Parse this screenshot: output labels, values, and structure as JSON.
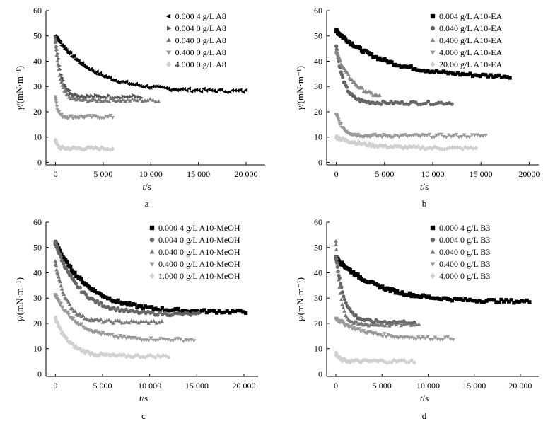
{
  "chart_data": [
    {
      "type": "scatter",
      "panel_label": "a",
      "xlabel_var": "t",
      "xlabel_unit": "/s",
      "ylabel_var": "γ",
      "ylabel_unit": "/(mN·m⁻¹)",
      "xlim": [
        -1000,
        22000
      ],
      "ylim": [
        -1,
        60
      ],
      "xticks": [
        0,
        5000,
        10000,
        15000,
        20000
      ],
      "xtick_labels": [
        "0",
        "5 000",
        "10 000",
        "15 000",
        "20 000"
      ],
      "yticks": [
        0,
        10,
        20,
        30,
        40,
        50,
        60
      ],
      "legend_position": "top-right",
      "series": [
        {
          "name": "0.000 4 g/L A8",
          "marker": "triangle-left",
          "color": "#000000",
          "kind": "decay",
          "start": 50,
          "end": 28,
          "tau": 4000,
          "plateau": 26,
          "tmax": 20000
        },
        {
          "name": "0.004 0 g/L A8",
          "marker": "triangle-right",
          "color": "#555555",
          "kind": "decay",
          "start": 50,
          "end": 26,
          "tau": 600,
          "plateau": 26,
          "tmax": 9000
        },
        {
          "name": "0.040 0 g/L A8",
          "marker": "triangle-up",
          "color": "#777777",
          "kind": "decay",
          "start": 48,
          "end": 24.5,
          "tau": 500,
          "plateau": 24.5,
          "tmax": 10800
        },
        {
          "name": "0.400 0 g/L A8",
          "marker": "triangle-down",
          "color": "#999999",
          "kind": "decay",
          "start": 26,
          "end": 18,
          "tau": 250,
          "plateau": 18,
          "tmax": 6000
        },
        {
          "name": "4.000 0 g/L A8",
          "marker": "diamond",
          "color": "#d0d0d0",
          "kind": "decay",
          "start": 9,
          "end": 5.5,
          "tau": 200,
          "plateau": 5.5,
          "tmax": 6000
        }
      ]
    },
    {
      "type": "scatter",
      "panel_label": "b",
      "xlabel_var": "t",
      "xlabel_unit": "/s",
      "ylabel_var": "γ",
      "ylabel_unit": "/(mN·m⁻¹)",
      "xlim": [
        -1000,
        21000
      ],
      "ylim": [
        -1,
        60
      ],
      "xticks": [
        0,
        5000,
        10000,
        15000,
        20000
      ],
      "xtick_labels": [
        "0",
        "5 000",
        "10 000",
        "15 000",
        "20000"
      ],
      "yticks": [
        0,
        10,
        20,
        30,
        40,
        50,
        60
      ],
      "legend_position": "top-right",
      "series": [
        {
          "name": "0.004 g/L A10-EA",
          "marker": "square",
          "color": "#000000",
          "kind": "decay",
          "start": 52,
          "end": 33.5,
          "tau": 5000,
          "plateau": 32,
          "tmax": 18000
        },
        {
          "name": "0.040 g/L A10-EA",
          "marker": "circle",
          "color": "#666666",
          "kind": "decay",
          "start": 46,
          "end": 23.5,
          "tau": 800,
          "plateau": 23.5,
          "tmax": 12000
        },
        {
          "name": "0.400 g/L A10-EA",
          "marker": "triangle-up",
          "color": "#888888",
          "kind": "decay",
          "start": 44,
          "end": 24.5,
          "tau": 1800,
          "plateau": 24.5,
          "tmax": 4500
        },
        {
          "name": "4.000 g/L A10-EA",
          "marker": "triangle-down",
          "color": "#999999",
          "kind": "decay",
          "start": 19,
          "end": 10.5,
          "tau": 700,
          "plateau": 10.5,
          "tmax": 15500
        },
        {
          "name": "20.00 g/L A10-EA",
          "marker": "diamond",
          "color": "#d0d0d0",
          "kind": "decay",
          "start": 10,
          "end": 5.5,
          "tau": 3000,
          "plateau": 5.5,
          "tmax": 14500
        }
      ]
    },
    {
      "type": "scatter",
      "panel_label": "c",
      "xlabel_var": "t",
      "xlabel_unit": "/s",
      "ylabel_var": "γ",
      "ylabel_unit": "/(mN·m⁻¹)",
      "xlim": [
        -1000,
        21500
      ],
      "ylim": [
        -1,
        60
      ],
      "xticks": [
        0,
        5000,
        10000,
        15000,
        20000
      ],
      "xtick_labels": [
        "0",
        "5 000",
        "10 000",
        "15 000",
        "20 000"
      ],
      "yticks": [
        0,
        10,
        20,
        30,
        40,
        50,
        60
      ],
      "legend_position": "top-right",
      "series": [
        {
          "name": "0.000 4 g/L A10-MeOH",
          "marker": "square",
          "color": "#000000",
          "kind": "decay",
          "start": 52,
          "end": 24.5,
          "tau": 3500,
          "plateau": 24.5,
          "tmax": 20200
        },
        {
          "name": "0.004 0 g/L A10-MeOH",
          "marker": "circle",
          "color": "#666666",
          "kind": "decay",
          "start": 52,
          "end": 23.5,
          "tau": 2500,
          "plateau": 23,
          "tmax": 15200
        },
        {
          "name": "0.040 0 g/L A10-MeOH",
          "marker": "triangle-up",
          "color": "#777777",
          "kind": "decay",
          "start": 44,
          "end": 20.5,
          "tau": 1200,
          "plateau": 20.5,
          "tmax": 11300
        },
        {
          "name": "0.400 0 g/L A10-MeOH",
          "marker": "triangle-down",
          "color": "#999999",
          "kind": "decay",
          "start": 31,
          "end": 13.5,
          "tau": 2500,
          "plateau": 13.5,
          "tmax": 14700
        },
        {
          "name": "1.000 0 g/L A10-MeOH",
          "marker": "diamond",
          "color": "#d0d0d0",
          "kind": "decay",
          "start": 22,
          "end": 7,
          "tau": 1500,
          "plateau": 7,
          "tmax": 12000
        }
      ]
    },
    {
      "type": "scatter",
      "panel_label": "d",
      "xlabel_var": "t",
      "xlabel_unit": "/s",
      "ylabel_var": "γ",
      "ylabel_unit": "/(mN·m⁻¹)",
      "xlim": [
        -1000,
        22000
      ],
      "ylim": [
        -1,
        60
      ],
      "xticks": [
        0,
        5000,
        10000,
        15000,
        20000
      ],
      "xtick_labels": [
        "0",
        "5 000",
        "10 000",
        "15 000",
        "20 000"
      ],
      "yticks": [
        0,
        10,
        20,
        30,
        40,
        50,
        60
      ],
      "legend_position": "top-right",
      "series": [
        {
          "name": "0.000 4 g/L B3",
          "marker": "square",
          "color": "#000000",
          "kind": "decay",
          "start": 46,
          "end": 28.5,
          "tau": 4500,
          "plateau": 28,
          "tmax": 21000
        },
        {
          "name": "0.004 0 g/L B3",
          "marker": "circle",
          "color": "#666666",
          "kind": "decay",
          "start": 47,
          "end": 20.5,
          "tau": 900,
          "plateau": 20,
          "tmax": 8500
        },
        {
          "name": "0.040 0 g/L B3",
          "marker": "triangle-up",
          "color": "#777777",
          "kind": "decay",
          "start": 52,
          "end": 19.5,
          "tau": 500,
          "plateau": 19.5,
          "tmax": 9000
        },
        {
          "name": "0.400 0 g/L B3",
          "marker": "triangle-down",
          "color": "#999999",
          "kind": "decay",
          "start": 22,
          "end": 14,
          "tau": 3000,
          "plateau": 14,
          "tmax": 12700
        },
        {
          "name": "4.000 0 g/L B3",
          "marker": "diamond",
          "color": "#d0d0d0",
          "kind": "decay",
          "start": 8,
          "end": 5,
          "tau": 400,
          "plateau": 5,
          "tmax": 8500
        }
      ]
    }
  ]
}
